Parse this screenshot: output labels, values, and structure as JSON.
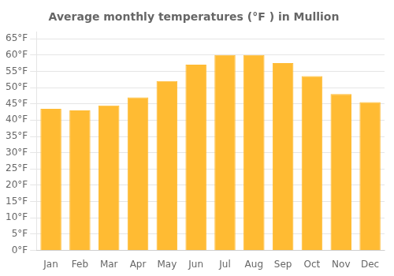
{
  "chart_data": {
    "type": "bar",
    "title": "Average monthly temperatures (°F ) in Mullion",
    "categories": [
      "Jan",
      "Feb",
      "Mar",
      "Apr",
      "May",
      "Jun",
      "Jul",
      "Aug",
      "Sep",
      "Oct",
      "Nov",
      "Dec"
    ],
    "values": [
      43.5,
      43.0,
      44.5,
      47.0,
      52.0,
      57.0,
      60.0,
      60.0,
      57.5,
      53.5,
      48.0,
      45.5
    ],
    "color": "#FFBB33",
    "ylim": [
      0,
      67
    ],
    "yticks": [
      {
        "value": 0,
        "label": "0°F"
      },
      {
        "value": 5,
        "label": "5°F"
      },
      {
        "value": 10,
        "label": "10°F"
      },
      {
        "value": 15,
        "label": "15°F"
      },
      {
        "value": 20,
        "label": "20°F"
      },
      {
        "value": 25,
        "label": "25°F"
      },
      {
        "value": 30,
        "label": "30°F"
      },
      {
        "value": 35,
        "label": "35°F"
      },
      {
        "value": 40,
        "label": "40°F"
      },
      {
        "value": 45,
        "label": "45°F"
      },
      {
        "value": 50,
        "label": "50°F"
      },
      {
        "value": 55,
        "label": "55°F"
      },
      {
        "value": 60,
        "label": "60°F"
      },
      {
        "value": 65,
        "label": "65°F"
      }
    ],
    "grid": true
  }
}
